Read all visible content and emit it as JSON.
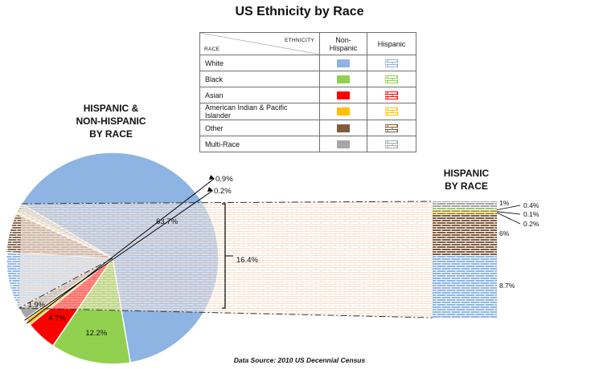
{
  "title": "US Ethnicity by Race",
  "left_title": [
    "HISPANIC &",
    "NON-HISPANIC",
    "BY RACE"
  ],
  "right_title": [
    "HISPANIC",
    "BY RACE"
  ],
  "legend": {
    "col_ethnicity": "ETHNICITY",
    "col_race": "RACE",
    "col_nonhispanic": "Non-Hispanic",
    "col_hispanic": "Hispanic",
    "rows": [
      {
        "name": "White",
        "color": "#8db4e2"
      },
      {
        "name": "Black",
        "color": "#92d050"
      },
      {
        "name": "Asian",
        "color": "#ff0000"
      },
      {
        "name": "American Indian & Pacific Islander",
        "color": "#ffc000"
      },
      {
        "name": "Other",
        "color": "#7f5c40"
      },
      {
        "name": "Multi-Race",
        "color": "#a6a6a6"
      }
    ]
  },
  "footer": "Data Source: 2010 US Decennial Census",
  "chart_data": [
    {
      "type": "pie",
      "title": "HISPANIC & NON-HISPANIC BY RACE",
      "slices": [
        {
          "name": "White",
          "ethnicity": "Non-Hispanic",
          "value": 63.7,
          "label": "63.7%",
          "color": "#8db4e2",
          "pattern": false
        },
        {
          "name": "Black",
          "ethnicity": "Non-Hispanic",
          "value": 12.2,
          "label": "12.2%",
          "color": "#92d050",
          "pattern": false
        },
        {
          "name": "Asian",
          "ethnicity": "Non-Hispanic",
          "value": 4.7,
          "label": "4.7%",
          "color": "#ff0000",
          "pattern": false
        },
        {
          "name": "American Indian & Pacific Islander",
          "ethnicity": "Non-Hispanic",
          "value": 0.9,
          "label": "0.9%",
          "color": "#ffc000",
          "pattern": false
        },
        {
          "name": "Other",
          "ethnicity": "Non-Hispanic",
          "value": 0.2,
          "label": "0.2%",
          "color": "#7f5c40",
          "pattern": false
        },
        {
          "name": "Multi-Race",
          "ethnicity": "Non-Hispanic",
          "value": 1.9,
          "label": "1.9%",
          "color": "#a6a6a6",
          "pattern": false
        },
        {
          "name": "Hispanic",
          "ethnicity": "Hispanic",
          "value": 16.4,
          "label": "16.4%",
          "color": "#fbe5d6",
          "pattern": true
        }
      ]
    },
    {
      "type": "bar",
      "stacked": true,
      "title": "HISPANIC BY RACE",
      "series": [
        {
          "name": "White",
          "value": 8.7,
          "label": "8.7%",
          "color": "#8db4e2"
        },
        {
          "name": "Other",
          "value": 6,
          "label": "6%",
          "color": "#7f5c40"
        },
        {
          "name": "American Indian & Pacific Islander",
          "value": 0.2,
          "label": "0.2%",
          "color": "#ffc000"
        },
        {
          "name": "Asian",
          "value": 0.1,
          "label": "0.1%",
          "color": "#ff0000"
        },
        {
          "name": "Black",
          "value": 0.4,
          "label": "0.4%",
          "color": "#92d050"
        },
        {
          "name": "Multi-Race",
          "value": 1,
          "label": "1%",
          "color": "#a6a6a6"
        }
      ]
    }
  ]
}
